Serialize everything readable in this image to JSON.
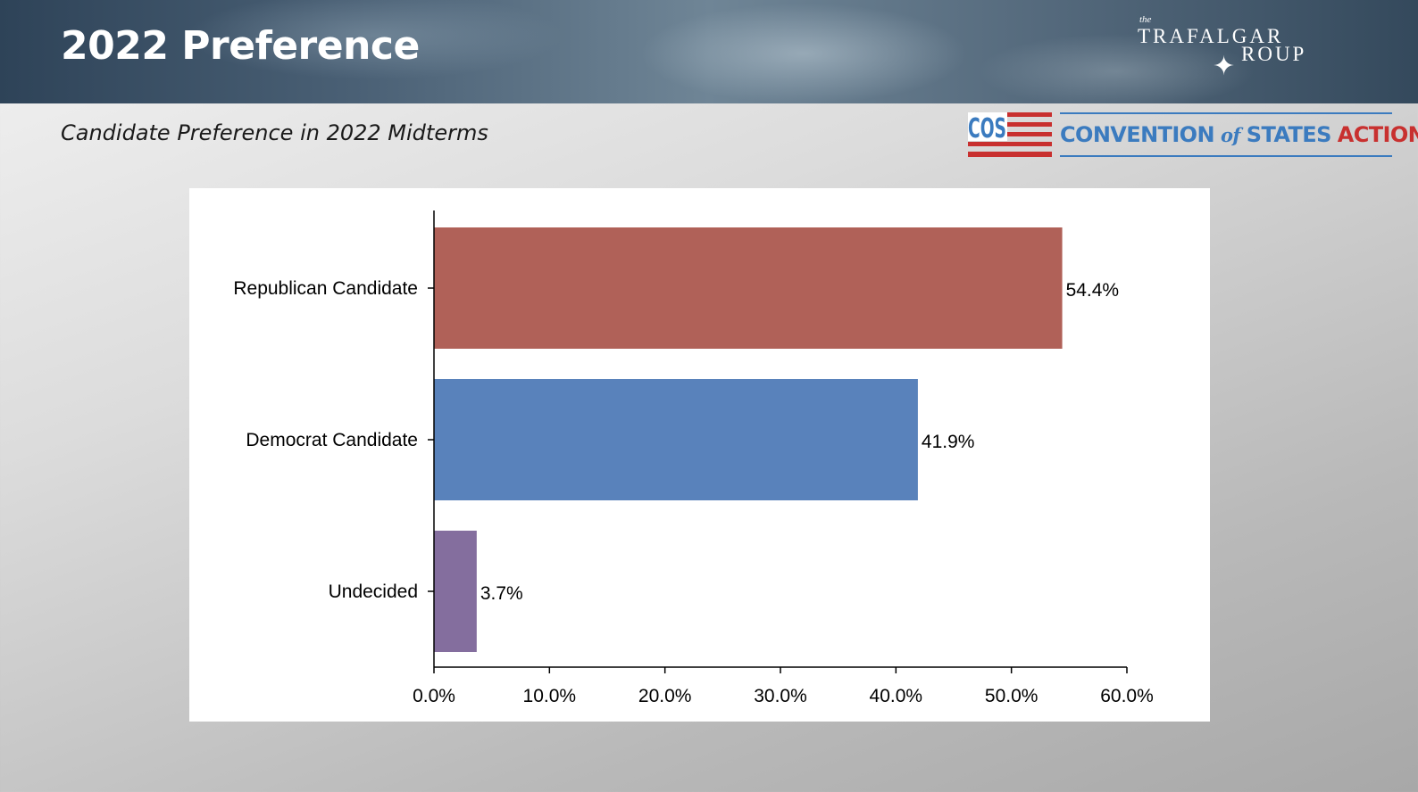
{
  "header": {
    "title": "2022 Preference",
    "subtitle": "Candidate Preference in 2022 Midterms"
  },
  "logos": {
    "trafalgar": {
      "the": "the",
      "line1": "TRAFALGAR",
      "line2": "ROUP"
    },
    "cos": {
      "mark": "COS",
      "name_part1": "CONVENTION",
      "name_of": "of",
      "name_part2": "STATES",
      "name_part3": "ACTION"
    }
  },
  "colors": {
    "republican": "#b06158",
    "democrat": "#5982bb",
    "undecided": "#846e9e",
    "cos_blue": "#3b7bbf",
    "cos_red": "#c8302f"
  },
  "chart_data": {
    "type": "bar",
    "orientation": "horizontal",
    "title": "",
    "xlabel": "",
    "ylabel": "",
    "categories": [
      "Republican Candidate",
      "Democrat Candidate",
      "Undecided"
    ],
    "values": [
      54.4,
      41.9,
      3.7
    ],
    "data_labels": [
      "54.4%",
      "41.9%",
      "3.7%"
    ],
    "xlim": [
      0,
      60
    ],
    "x_ticks": [
      0,
      10,
      20,
      30,
      40,
      50,
      60
    ],
    "x_tick_labels": [
      "0.0%",
      "10.0%",
      "20.0%",
      "30.0%",
      "40.0%",
      "50.0%",
      "60.0%"
    ],
    "grid": false,
    "legend": "none"
  }
}
